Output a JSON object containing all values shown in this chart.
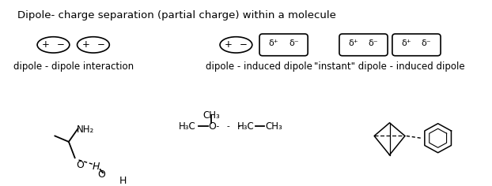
{
  "title": "Dipole- charge separation (partial charge) within a molecule",
  "title_fontsize": 9.5,
  "bg_color": "#ffffff",
  "label1": "dipole - dipole interaction",
  "label2": "dipole - induced dipole",
  "label3": "\"instant\" dipole - induced dipole",
  "label_fontsize": 8.5
}
